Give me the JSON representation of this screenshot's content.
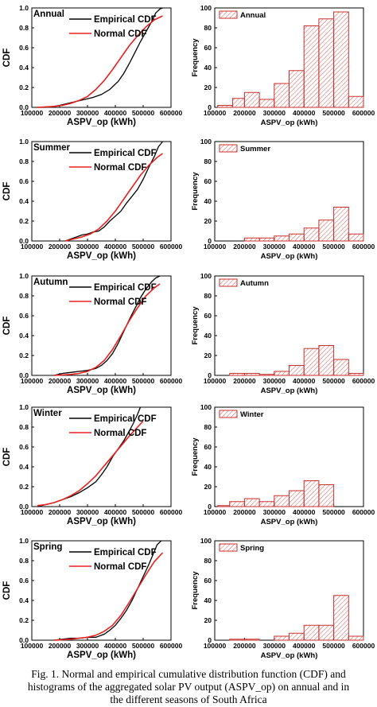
{
  "caption": {
    "line1": "Fig. 1. Normal and empirical cumulative distribution function (CDF) and",
    "line2": "histograms of the aggregated solar PV output (ASPV_op) on annual and in",
    "line3": "the different seasons of South Africa"
  },
  "colors": {
    "empirical": "#000000",
    "normal": "#e8211f",
    "hist_stroke": "#c8312e",
    "hist_hatch": "#e05a57"
  },
  "chart_data": [
    {
      "type": "line",
      "panel": "Annual",
      "title": "Annual",
      "xlabel": "ASPV_op (kWh)",
      "ylabel": "CDF",
      "xlim": [
        100000,
        600000
      ],
      "ylim": [
        0.0,
        1.0
      ],
      "xticks": [
        "100000",
        "200000",
        "300000",
        "400000",
        "500000",
        "600000"
      ],
      "yticks": [
        "0.0",
        "0.2",
        "0.4",
        "0.6",
        "0.8",
        "1.0"
      ],
      "legend": "top-right",
      "series": [
        {
          "name": "Empirical CDF",
          "color": "black",
          "x": [
            120000,
            150000,
            180000,
            200000,
            230000,
            260000,
            290000,
            320000,
            350000,
            380000,
            410000,
            430000,
            450000,
            470000,
            490000,
            510000,
            530000,
            545000,
            560000,
            570000
          ],
          "y": [
            0.0,
            0.0,
            0.01,
            0.02,
            0.04,
            0.06,
            0.08,
            0.1,
            0.13,
            0.18,
            0.26,
            0.34,
            0.44,
            0.55,
            0.66,
            0.76,
            0.86,
            0.95,
            0.99,
            1.0
          ]
        },
        {
          "name": "Normal CDF",
          "color": "red",
          "x": [
            120000,
            150000,
            180000,
            210000,
            240000,
            270000,
            300000,
            330000,
            360000,
            390000,
            420000,
            450000,
            480000,
            510000,
            540000,
            570000
          ],
          "y": [
            0.0,
            0.005,
            0.01,
            0.02,
            0.04,
            0.07,
            0.11,
            0.18,
            0.27,
            0.38,
            0.5,
            0.62,
            0.72,
            0.81,
            0.88,
            0.92
          ]
        }
      ]
    },
    {
      "type": "bar",
      "panel": "Annual",
      "legend_label": "Annual",
      "xlabel": "ASPV_op (kWh)",
      "ylabel": "Frequency",
      "xlim": [
        100000,
        600000
      ],
      "ylim": [
        0,
        100
      ],
      "xticks": [
        "100000",
        "200000",
        "300000",
        "400000",
        "500000",
        "600000"
      ],
      "yticks": [
        "0",
        "20",
        "40",
        "60",
        "80",
        "100"
      ],
      "bins": [
        {
          "from": 110000,
          "to": 160000,
          "count": 2
        },
        {
          "from": 160000,
          "to": 200000,
          "count": 9
        },
        {
          "from": 200000,
          "to": 250000,
          "count": 15
        },
        {
          "from": 250000,
          "to": 300000,
          "count": 8
        },
        {
          "from": 300000,
          "to": 350000,
          "count": 24
        },
        {
          "from": 350000,
          "to": 400000,
          "count": 37
        },
        {
          "from": 400000,
          "to": 450000,
          "count": 82
        },
        {
          "from": 450000,
          "to": 500000,
          "count": 89
        },
        {
          "from": 500000,
          "to": 550000,
          "count": 96
        },
        {
          "from": 550000,
          "to": 600000,
          "count": 11
        }
      ]
    },
    {
      "type": "line",
      "panel": "Summer",
      "title": "Summer",
      "xlabel": "ASPV_op (kWh)",
      "ylabel": "CDF",
      "xlim": [
        100000,
        600000
      ],
      "ylim": [
        0.0,
        1.0
      ],
      "xticks": [
        "100000",
        "200000",
        "300000",
        "400000",
        "500000",
        "600000"
      ],
      "yticks": [
        "0.0",
        "0.2",
        "0.4",
        "0.6",
        "0.8",
        "1.0"
      ],
      "legend": "top-right",
      "series": [
        {
          "name": "Empirical CDF",
          "color": "black",
          "x": [
            220000,
            240000,
            260000,
            280000,
            300000,
            320000,
            340000,
            360000,
            380000,
            400000,
            420000,
            440000,
            460000,
            480000,
            500000,
            520000,
            540000,
            555000,
            570000
          ],
          "y": [
            0.0,
            0.02,
            0.04,
            0.06,
            0.07,
            0.09,
            0.1,
            0.14,
            0.2,
            0.25,
            0.3,
            0.38,
            0.45,
            0.52,
            0.62,
            0.74,
            0.85,
            0.95,
            1.0
          ]
        },
        {
          "name": "Normal CDF",
          "color": "red",
          "x": [
            220000,
            250000,
            280000,
            310000,
            340000,
            370000,
            400000,
            430000,
            460000,
            490000,
            520000,
            550000,
            570000
          ],
          "y": [
            0.0,
            0.02,
            0.04,
            0.07,
            0.12,
            0.2,
            0.3,
            0.42,
            0.54,
            0.66,
            0.76,
            0.84,
            0.88
          ]
        }
      ]
    },
    {
      "type": "bar",
      "panel": "Summer",
      "legend_label": "Summer",
      "xlabel": "ASPV_op (kWh)",
      "ylabel": "Frequency",
      "xlim": [
        100000,
        600000
      ],
      "ylim": [
        0,
        100
      ],
      "xticks": [
        "100000",
        "200000",
        "300000",
        "400000",
        "500000",
        "600000"
      ],
      "yticks": [
        "0",
        "20",
        "40",
        "60",
        "80",
        "100"
      ],
      "bins": [
        {
          "from": 200000,
          "to": 250000,
          "count": 3
        },
        {
          "from": 250000,
          "to": 300000,
          "count": 3
        },
        {
          "from": 300000,
          "to": 350000,
          "count": 5
        },
        {
          "from": 350000,
          "to": 400000,
          "count": 7
        },
        {
          "from": 400000,
          "to": 450000,
          "count": 13
        },
        {
          "from": 450000,
          "to": 500000,
          "count": 21
        },
        {
          "from": 500000,
          "to": 550000,
          "count": 34
        },
        {
          "from": 550000,
          "to": 600000,
          "count": 7
        }
      ]
    },
    {
      "type": "line",
      "panel": "Autumn",
      "title": "Autumn",
      "xlabel": "ASPV_op (kWh)",
      "ylabel": "CDF",
      "xlim": [
        100000,
        600000
      ],
      "ylim": [
        0.0,
        1.0
      ],
      "xticks": [
        "100000",
        "200000",
        "300000",
        "400000",
        "500000",
        "600000"
      ],
      "yticks": [
        "0.0",
        "0.2",
        "0.4",
        "0.6",
        "0.8",
        "1.0"
      ],
      "legend": "top-right",
      "series": [
        {
          "name": "Empirical CDF",
          "color": "black",
          "x": [
            180000,
            210000,
            240000,
            270000,
            300000,
            330000,
            350000,
            370000,
            390000,
            410000,
            430000,
            450000,
            470000,
            490000,
            510000,
            530000,
            545000,
            560000
          ],
          "y": [
            0.0,
            0.02,
            0.03,
            0.04,
            0.05,
            0.07,
            0.1,
            0.15,
            0.22,
            0.32,
            0.44,
            0.56,
            0.67,
            0.78,
            0.87,
            0.94,
            0.98,
            1.0
          ]
        },
        {
          "name": "Normal CDF",
          "color": "red",
          "x": [
            180000,
            210000,
            240000,
            270000,
            300000,
            330000,
            360000,
            390000,
            420000,
            450000,
            480000,
            510000,
            540000,
            560000
          ],
          "y": [
            0.0,
            0.005,
            0.01,
            0.02,
            0.04,
            0.08,
            0.15,
            0.26,
            0.4,
            0.55,
            0.68,
            0.8,
            0.88,
            0.92
          ]
        }
      ]
    },
    {
      "type": "bar",
      "panel": "Autumn",
      "legend_label": "Autumn",
      "xlabel": "ASPV_op (kWh)",
      "ylabel": "Frequency",
      "xlim": [
        100000,
        600000
      ],
      "ylim": [
        0,
        100
      ],
      "xticks": [
        "100000",
        "200000",
        "300000",
        "400000",
        "500000",
        "600000"
      ],
      "yticks": [
        "0",
        "20",
        "40",
        "60",
        "80",
        "100"
      ],
      "bins": [
        {
          "from": 150000,
          "to": 200000,
          "count": 2
        },
        {
          "from": 200000,
          "to": 250000,
          "count": 2
        },
        {
          "from": 250000,
          "to": 300000,
          "count": 1
        },
        {
          "from": 300000,
          "to": 350000,
          "count": 4
        },
        {
          "from": 350000,
          "to": 400000,
          "count": 10
        },
        {
          "from": 400000,
          "to": 450000,
          "count": 27
        },
        {
          "from": 450000,
          "to": 500000,
          "count": 30
        },
        {
          "from": 500000,
          "to": 550000,
          "count": 16
        },
        {
          "from": 550000,
          "to": 600000,
          "count": 2
        }
      ]
    },
    {
      "type": "line",
      "panel": "Winter",
      "title": "Winter",
      "xlabel": "ASPV_op (kWh)",
      "ylabel": "CDF",
      "xlim": [
        100000,
        600000
      ],
      "ylim": [
        0.0,
        1.0
      ],
      "xticks": [
        "100000",
        "200000",
        "300000",
        "400000",
        "500000",
        "600000"
      ],
      "yticks": [
        "0.0",
        "0.2",
        "0.4",
        "0.6",
        "0.8",
        "1.0"
      ],
      "legend": "top-right",
      "series": [
        {
          "name": "Empirical CDF",
          "color": "black",
          "x": [
            120000,
            150000,
            180000,
            210000,
            240000,
            270000,
            300000,
            330000,
            350000,
            370000,
            390000,
            410000,
            430000,
            450000,
            465000,
            480000,
            490000
          ],
          "y": [
            0.0,
            0.02,
            0.04,
            0.07,
            0.1,
            0.14,
            0.19,
            0.25,
            0.32,
            0.4,
            0.5,
            0.58,
            0.66,
            0.76,
            0.84,
            0.93,
            1.0
          ]
        },
        {
          "name": "Normal CDF",
          "color": "red",
          "x": [
            120000,
            150000,
            180000,
            210000,
            240000,
            270000,
            300000,
            330000,
            360000,
            390000,
            420000,
            450000,
            480000,
            500000
          ],
          "y": [
            0.01,
            0.02,
            0.04,
            0.07,
            0.11,
            0.16,
            0.23,
            0.31,
            0.41,
            0.51,
            0.61,
            0.71,
            0.8,
            0.86
          ]
        }
      ]
    },
    {
      "type": "bar",
      "panel": "Winter",
      "legend_label": "Winter",
      "xlabel": "ASPV_op (kWh)",
      "ylabel": "Frequency",
      "xlim": [
        100000,
        600000
      ],
      "ylim": [
        0,
        100
      ],
      "xticks": [
        "100000",
        "200000",
        "300000",
        "400000",
        "500000",
        "600000"
      ],
      "yticks": [
        "0",
        "20",
        "40",
        "60",
        "80",
        "100"
      ],
      "bins": [
        {
          "from": 110000,
          "to": 150000,
          "count": 1
        },
        {
          "from": 150000,
          "to": 200000,
          "count": 5
        },
        {
          "from": 200000,
          "to": 250000,
          "count": 8
        },
        {
          "from": 250000,
          "to": 300000,
          "count": 5
        },
        {
          "from": 300000,
          "to": 350000,
          "count": 11
        },
        {
          "from": 350000,
          "to": 400000,
          "count": 16
        },
        {
          "from": 400000,
          "to": 450000,
          "count": 26
        },
        {
          "from": 450000,
          "to": 500000,
          "count": 22
        }
      ]
    },
    {
      "type": "line",
      "panel": "Spring",
      "title": "Spring",
      "xlabel": "ASPV_op (kWh)",
      "ylabel": "CDF",
      "xlim": [
        100000,
        600000
      ],
      "ylim": [
        0.0,
        1.0
      ],
      "xticks": [
        "100000",
        "200000",
        "300000",
        "400000",
        "500000",
        "600000"
      ],
      "yticks": [
        "0.0",
        "0.2",
        "0.4",
        "0.6",
        "0.8",
        "1.0"
      ],
      "legend": "top-right",
      "series": [
        {
          "name": "Empirical CDF",
          "color": "black",
          "x": [
            180000,
            210000,
            240000,
            270000,
            300000,
            330000,
            360000,
            380000,
            400000,
            420000,
            440000,
            460000,
            480000,
            500000,
            520000,
            535000,
            550000,
            565000
          ],
          "y": [
            0.0,
            0.01,
            0.02,
            0.02,
            0.03,
            0.03,
            0.06,
            0.1,
            0.15,
            0.22,
            0.3,
            0.4,
            0.52,
            0.64,
            0.76,
            0.86,
            0.96,
            1.0
          ]
        },
        {
          "name": "Normal CDF",
          "color": "red",
          "x": [
            180000,
            210000,
            240000,
            270000,
            300000,
            330000,
            360000,
            390000,
            420000,
            450000,
            480000,
            510000,
            540000,
            570000
          ],
          "y": [
            0.0,
            0.005,
            0.01,
            0.02,
            0.03,
            0.05,
            0.09,
            0.15,
            0.25,
            0.38,
            0.52,
            0.66,
            0.79,
            0.88
          ]
        }
      ]
    },
    {
      "type": "bar",
      "panel": "Spring",
      "legend_label": "Spring",
      "xlabel": "ASPV_op (kWh)",
      "ylabel": "Frequency",
      "xlim": [
        100000,
        600000
      ],
      "ylim": [
        0,
        100
      ],
      "xticks": [
        "100000",
        "200000",
        "300000",
        "400000",
        "500000",
        "600000"
      ],
      "yticks": [
        "0",
        "20",
        "40",
        "60",
        "80",
        "100"
      ],
      "bins": [
        {
          "from": 150000,
          "to": 250000,
          "count": 1
        },
        {
          "from": 300000,
          "to": 350000,
          "count": 4
        },
        {
          "from": 350000,
          "to": 400000,
          "count": 7
        },
        {
          "from": 400000,
          "to": 450000,
          "count": 15
        },
        {
          "from": 450000,
          "to": 500000,
          "count": 15
        },
        {
          "from": 500000,
          "to": 550000,
          "count": 45
        },
        {
          "from": 550000,
          "to": 600000,
          "count": 4
        }
      ]
    }
  ]
}
